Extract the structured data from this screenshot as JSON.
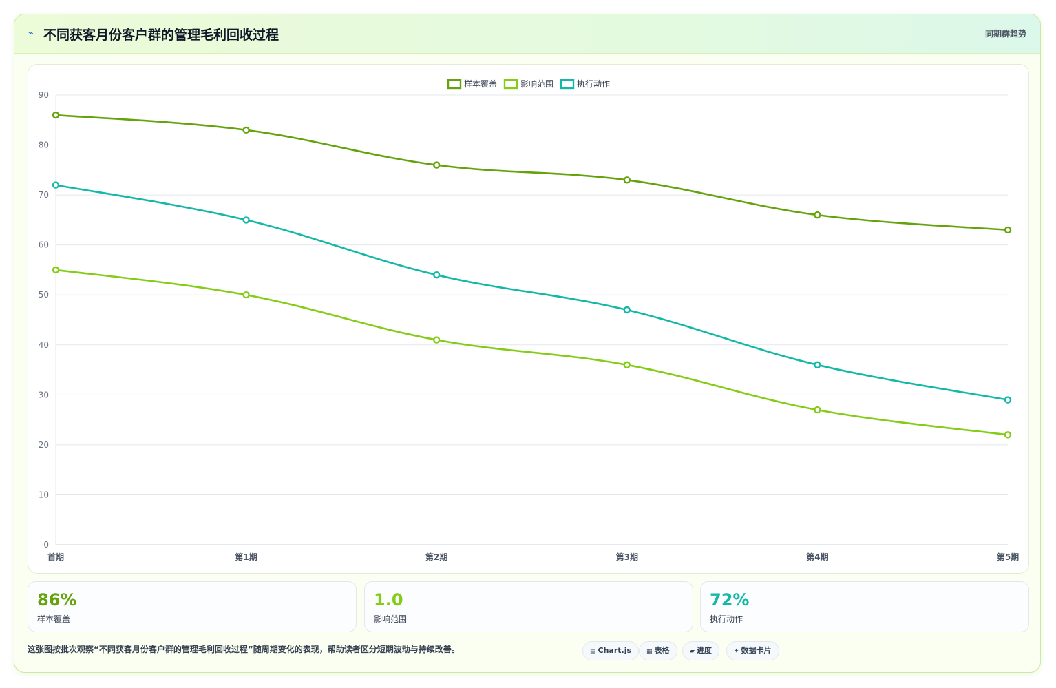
{
  "header": {
    "icon": "bolt-icon",
    "title": "不同获客月份客户群的管理毛利回收过程",
    "tag": "同期群趋势"
  },
  "colors": {
    "series1": "#65a30d",
    "series2": "#84cc16",
    "series3": "#14b8a6"
  },
  "chart_data": {
    "type": "line",
    "categories": [
      "首期",
      "第1期",
      "第2期",
      "第3期",
      "第4期",
      "第5期"
    ],
    "ylim": [
      0,
      90
    ],
    "yticks": [
      0,
      10,
      20,
      30,
      40,
      50,
      60,
      70,
      80,
      90
    ],
    "grid": true,
    "legend_position": "top-center",
    "series": [
      {
        "name": "样本覆盖",
        "values": [
          86,
          83,
          76,
          73,
          66,
          63
        ]
      },
      {
        "name": "影响范围",
        "values": [
          55,
          50,
          41,
          36,
          27,
          22
        ]
      },
      {
        "name": "执行动作",
        "values": [
          72,
          65,
          54,
          47,
          36,
          29
        ]
      }
    ]
  },
  "stats": [
    {
      "value": "86%",
      "label": "样本覆盖"
    },
    {
      "value": "1.0",
      "label": "影响范围"
    },
    {
      "value": "72%",
      "label": "执行动作"
    }
  ],
  "footer": {
    "note": "这张图按批次观察“不同获客月份客户群的管理毛利回收过程”随周期变化的表现，帮助读者区分短期波动与持续改善。",
    "chips": [
      {
        "icon": "▤",
        "label": "Chart.js"
      },
      {
        "icon": "▦",
        "label": "表格"
      },
      {
        "icon": "▰",
        "label": "进度"
      },
      {
        "icon": "✦",
        "label": "数据卡片"
      }
    ]
  }
}
